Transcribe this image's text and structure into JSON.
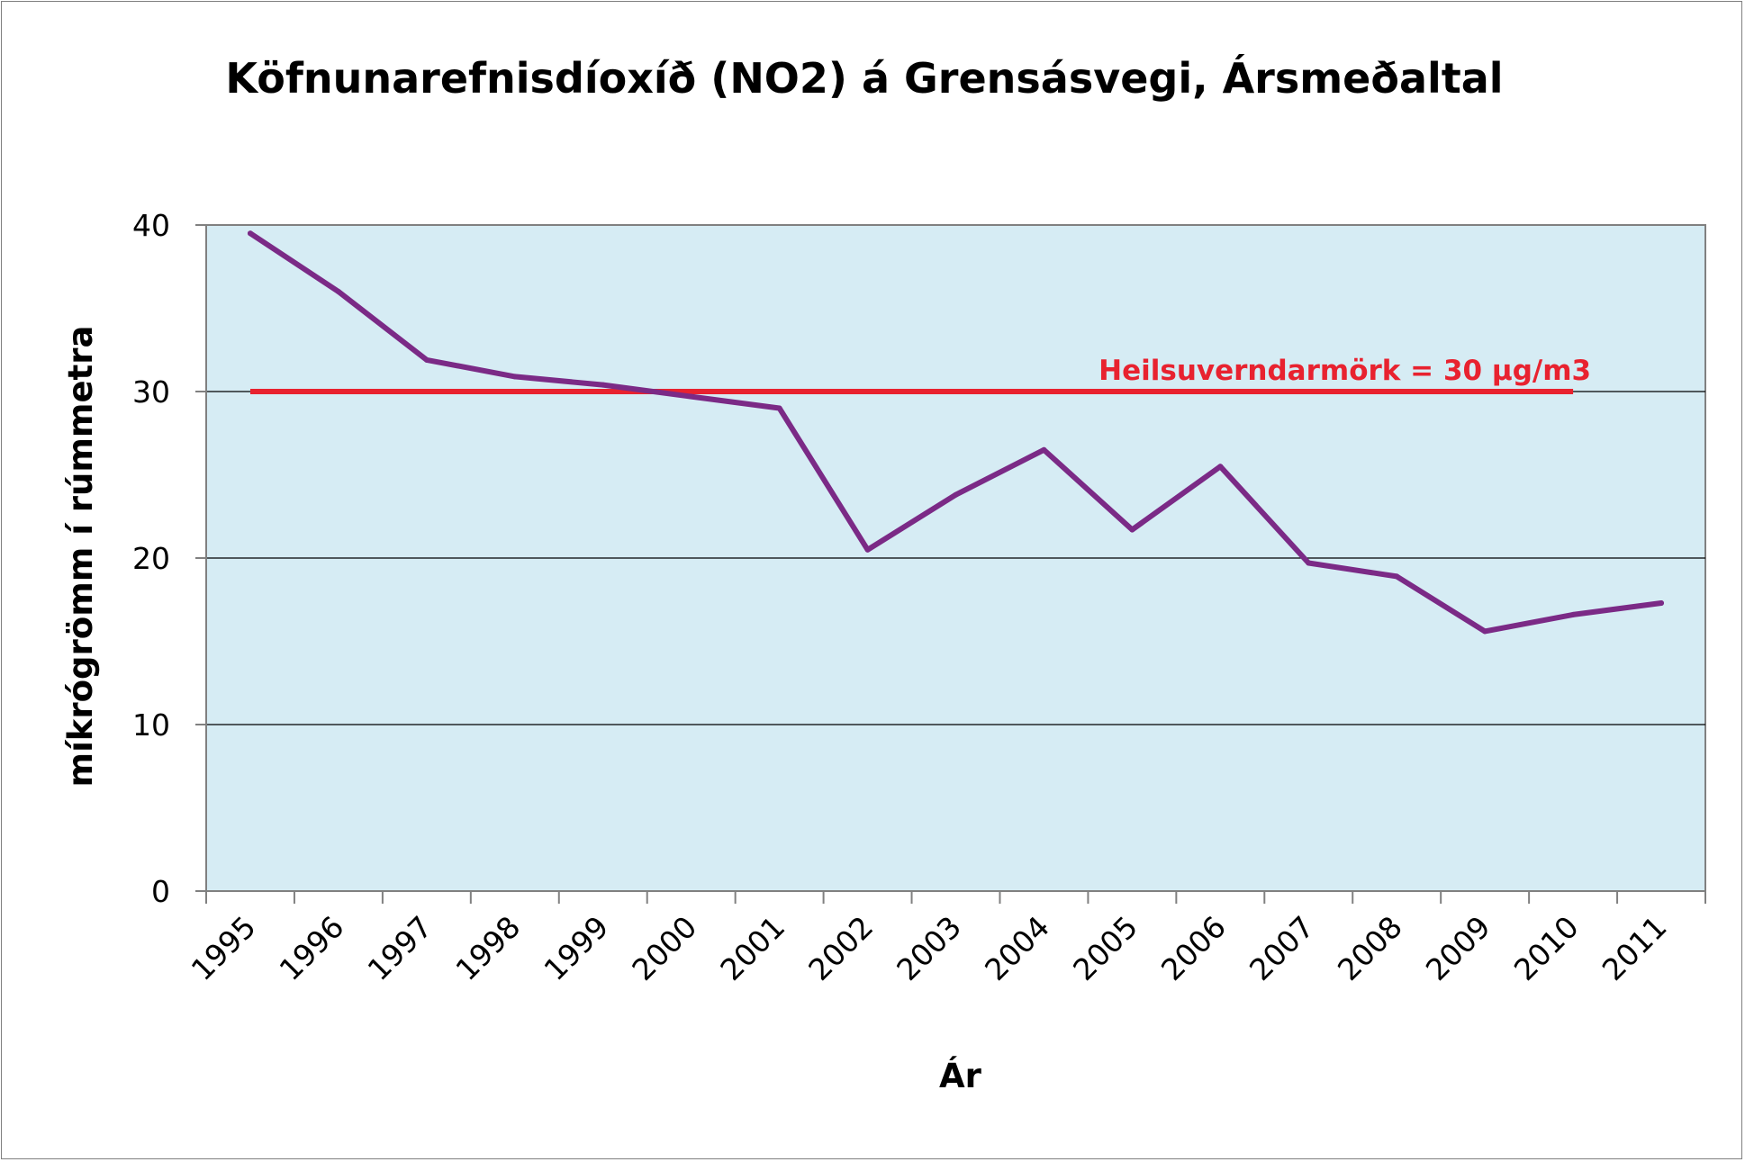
{
  "chart_data": {
    "type": "line",
    "title": "Köfnunarefnisdíoxíð (NO2) á Grensásvegi, Ársmeðaltal",
    "xlabel": "Ár",
    "ylabel": "míkrógrömm í rúmmetra",
    "categories": [
      "1995",
      "1996",
      "1997",
      "1998",
      "1999",
      "2000",
      "2001",
      "2002",
      "2003",
      "2004",
      "2005",
      "2006",
      "2007",
      "2008",
      "2009",
      "2010",
      "2011"
    ],
    "yticks": [
      "0",
      "10",
      "20",
      "30",
      "40"
    ],
    "ylim": [
      0,
      40
    ],
    "grid": true,
    "series": [
      {
        "values": [
          39.5,
          36.0,
          31.9,
          30.9,
          30.4,
          29.7,
          29.0,
          20.5,
          23.8,
          26.5,
          21.7,
          25.5,
          19.7,
          18.9,
          15.6,
          16.6,
          17.3
        ],
        "color": "#7b2a86"
      }
    ],
    "reference_line": {
      "label": "Heilsuverndarmörk = 30 µg/m3",
      "value": 30,
      "from": "1995",
      "to": "2010",
      "color": "#e8222f"
    },
    "plot_background": "#d6ecf4",
    "legend": "none"
  }
}
